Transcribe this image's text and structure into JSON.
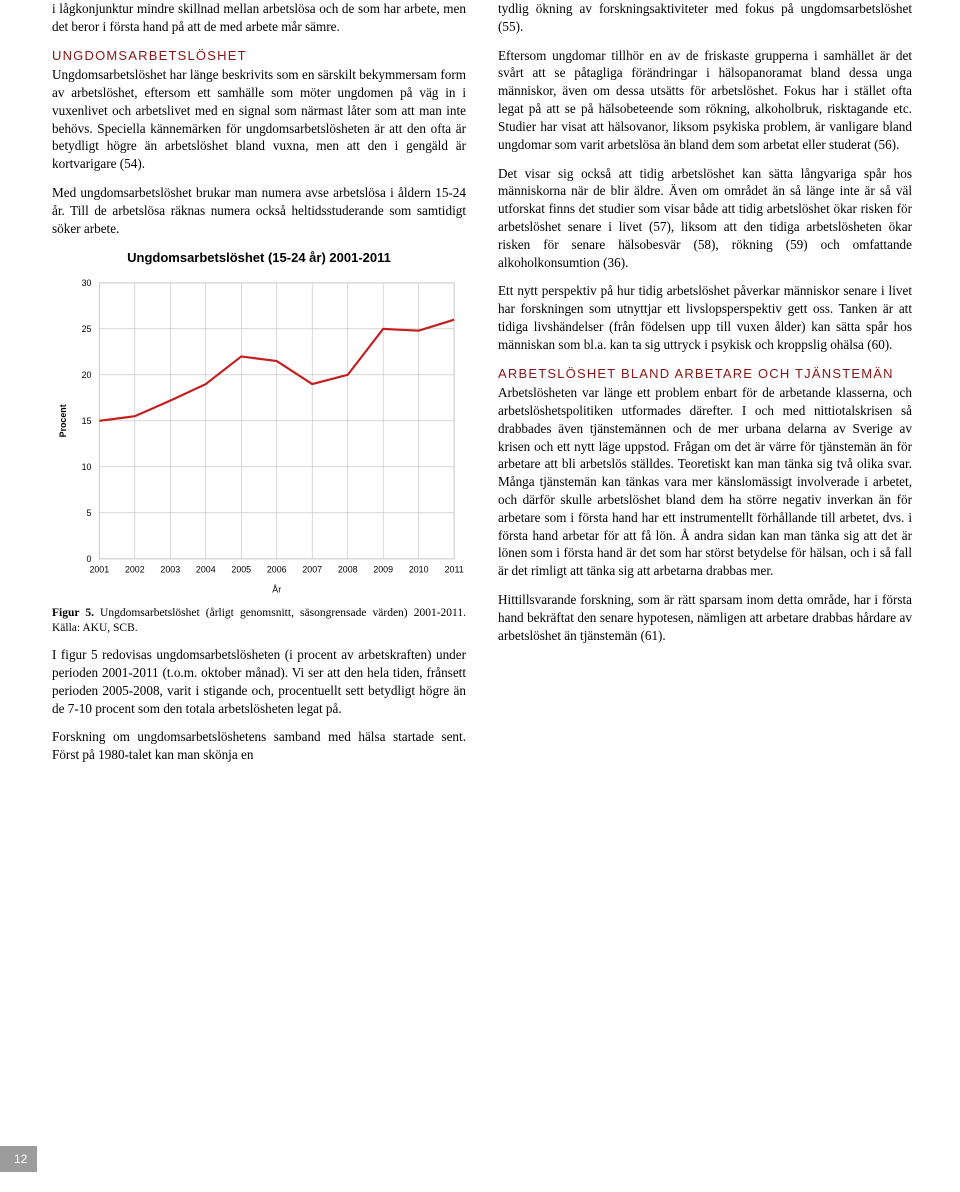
{
  "left": {
    "p1": "i lågkonjunktur mindre skillnad mellan arbetslösa och de som har arbete, men det beror i första hand på att de med arbete mår sämre.",
    "h1": "UNGDOMSARBETSLÖSHET",
    "p2": "Ungdomsarbetslöshet har länge beskrivits som en särskilt bekymmersam form av arbetslöshet, eftersom ett samhälle som möter ungdomen på väg in i vuxenlivet och arbetslivet med en signal som närmast låter som att man inte behövs. Speciella kännemärken för ungdomsarbetslösheten är att den ofta är betydligt högre än arbetslöshet bland vuxna, men att den i gengäld är kortvarigare (54).",
    "p3": "Med ungdomsarbetslöshet brukar man numera avse arbetslösa i åldern 15-24 år. Till de arbetslösa räknas numera också heltidsstuderande som samtidigt söker arbete.",
    "chart": {
      "title": "Ungdomsarbetslöshet (15-24 år) 2001-2011",
      "years": [
        2001,
        2002,
        2003,
        2004,
        2005,
        2006,
        2007,
        2008,
        2009,
        2010,
        2011
      ],
      "values": [
        15.0,
        15.5,
        17.2,
        19.0,
        22.0,
        21.5,
        19.0,
        20.0,
        25.0,
        24.8,
        26.0
      ],
      "yTicks": [
        0,
        5,
        10,
        15,
        20,
        25,
        30
      ],
      "line_color": "#c41e1e",
      "grid_color": "#bfbfbf",
      "text_color": "#000000",
      "bg_color": "#ffffff",
      "line_width": 2.2,
      "xlabel": "År",
      "ylabel": "Procent",
      "font_size": 9
    },
    "caption_bold": "Figur 5.",
    "caption": "Ungdomsarbetslöshet (årligt genomsnitt, säsongrensade värden) 2001-2011. Källa: AKU, SCB.",
    "p4": "I figur 5 redovisas ungdomsarbetslösheten (i procent av arbetskraften) under perioden 2001-2011 (t.o.m. oktober månad). Vi ser att den hela tiden, frånsett perioden 2005-2008, varit i stigande och, procentuellt sett betydligt högre än de 7-10 procent som den totala arbetslösheten legat på.",
    "p5": "Forskning om ungdomsarbetslöshetens samband med hälsa startade sent. Först på 1980-talet kan man skönja en"
  },
  "right": {
    "p1": "tydlig ökning av forskningsaktiviteter med fokus på ungdomsarbetslöshet (55).",
    "p2": "Eftersom ungdomar tillhör en av de friskaste grupperna i samhället är det svårt att se påtagliga förändringar i hälsopanoramat bland dessa unga människor, även om dessa utsätts för arbetslöshet. Fokus har i stället ofta legat på att se på hälsobeteende som rökning, alkoholbruk, risktagande etc. Studier har visat att hälsovanor, liksom psykiska problem, är vanligare bland ungdomar som varit arbetslösa än bland dem som arbetat eller studerat (56).",
    "p3": "Det visar sig också att tidig arbetslöshet kan sätta långvariga spår hos människorna när de blir äldre. Även om området än så länge inte är så väl utforskat finns det studier som visar både att tidig arbetslöshet ökar risken för arbetslöshet senare i livet (57), liksom att den tidiga arbetslösheten ökar risken för senare hälsobesvär (58), rökning (59) och omfattande alkoholkonsumtion (36).",
    "p4": "Ett nytt perspektiv på hur tidig arbetslöshet påverkar människor senare i livet har forskningen som utnyttjar ett livslopsperspektiv gett oss. Tanken är att tidiga livshändelser (från födelsen upp till vuxen ålder) kan sätta spår hos människan som bl.a. kan ta sig uttryck i psykisk och kroppslig ohälsa (60).",
    "h2": "ARBETSLÖSHET BLAND ARBETARE OCH TJÄNSTEMÄN",
    "p5": "Arbetslösheten var länge ett problem enbart för de arbetande klasserna, och arbetslöshetspolitiken utformades därefter. I och med nittiotalskrisen så drabbades även tjänstemännen och de mer urbana delarna av Sverige av krisen och ett nytt läge uppstod. Frågan om det är värre för tjänstemän än för arbetare att bli arbetslös ställdes. Teoretiskt kan man tänka sig två olika svar. Många tjänstemän kan tänkas vara mer känslomässigt involverade i arbetet, och därför skulle arbetslöshet bland dem ha större negativ inverkan än för arbetare som i första hand har ett instrumentellt förhållande till arbetet, dvs. i första hand arbetar för att få lön. Å andra sidan kan man tänka sig att det är lönen som i första hand är det som har störst betydelse för hälsan, och i så fall är det rimligt att tänka sig att arbetarna drabbas mer.",
    "p6": "Hittillsvarande forskning, som är rätt sparsam inom detta område, har i första hand bekräftat den senare hypotesen, nämligen att arbetare drabbas hårdare av arbetslöshet än tjänstemän (61)."
  },
  "pagenum": "12"
}
